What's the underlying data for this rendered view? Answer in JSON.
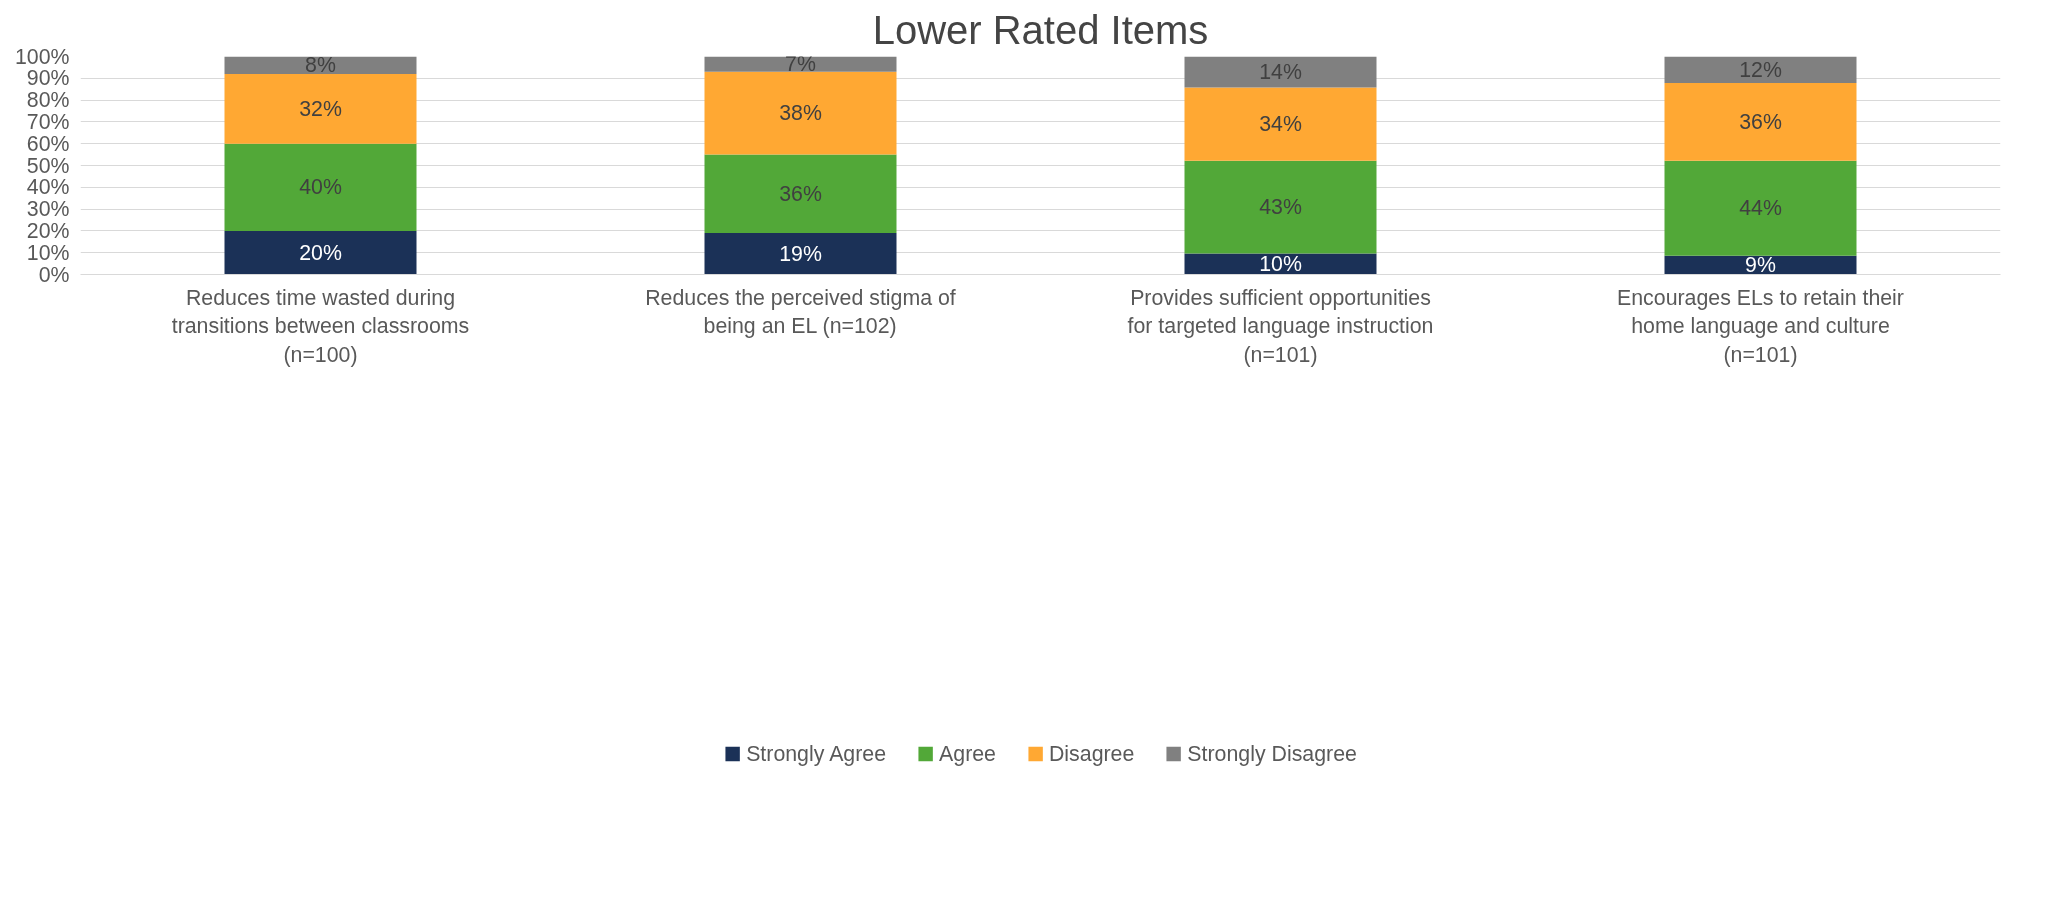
{
  "chart_data": {
    "type": "bar",
    "title": "Lower Rated Items",
    "stacked": true,
    "categories": [
      "Reduces time wasted during\ntransitions between classrooms\n(n=100)",
      "Reduces the perceived stigma of\nbeing an EL (n=102)",
      "Provides sufficient opportunities\nfor targeted language instruction\n(n=101)",
      "Encourages ELs to retain their\nhome language and culture\n(n=101)"
    ],
    "series": [
      {
        "name": "Strongly Agree",
        "color": "#1b3157",
        "values": [
          20,
          19,
          9.6,
          8.6
        ],
        "value_labels": [
          "20%",
          "19%",
          "10%",
          "9%"
        ]
      },
      {
        "name": "Agree",
        "color": "#52a838",
        "values": [
          40,
          36,
          42.6,
          43.6
        ],
        "value_labels": [
          "40%",
          "36%",
          "43%",
          "44%"
        ]
      },
      {
        "name": "Disagree",
        "color": "#ffa833",
        "values": [
          32,
          38,
          33.6,
          35.6
        ],
        "value_labels": [
          "32%",
          "38%",
          "34%",
          "36%"
        ]
      },
      {
        "name": "Strongly Disagree",
        "color": "#808080",
        "values": [
          8,
          7,
          14.2,
          12.2
        ],
        "value_labels": [
          "8%",
          "7%",
          "14%",
          "12%"
        ]
      }
    ],
    "ylim": [
      0,
      100
    ],
    "yticks": [
      {
        "value": 0,
        "label": "0%"
      },
      {
        "value": 10,
        "label": "10%"
      },
      {
        "value": 20,
        "label": "20%"
      },
      {
        "value": 30,
        "label": "30%"
      },
      {
        "value": 40,
        "label": "40%"
      },
      {
        "value": 50,
        "label": "50%"
      },
      {
        "value": 60,
        "label": "60%"
      },
      {
        "value": 70,
        "label": "70%"
      },
      {
        "value": 80,
        "label": "80%"
      },
      {
        "value": 90,
        "label": "90%"
      },
      {
        "value": 100,
        "label": "100%"
      }
    ],
    "grid": "y",
    "legend": "bottom"
  }
}
